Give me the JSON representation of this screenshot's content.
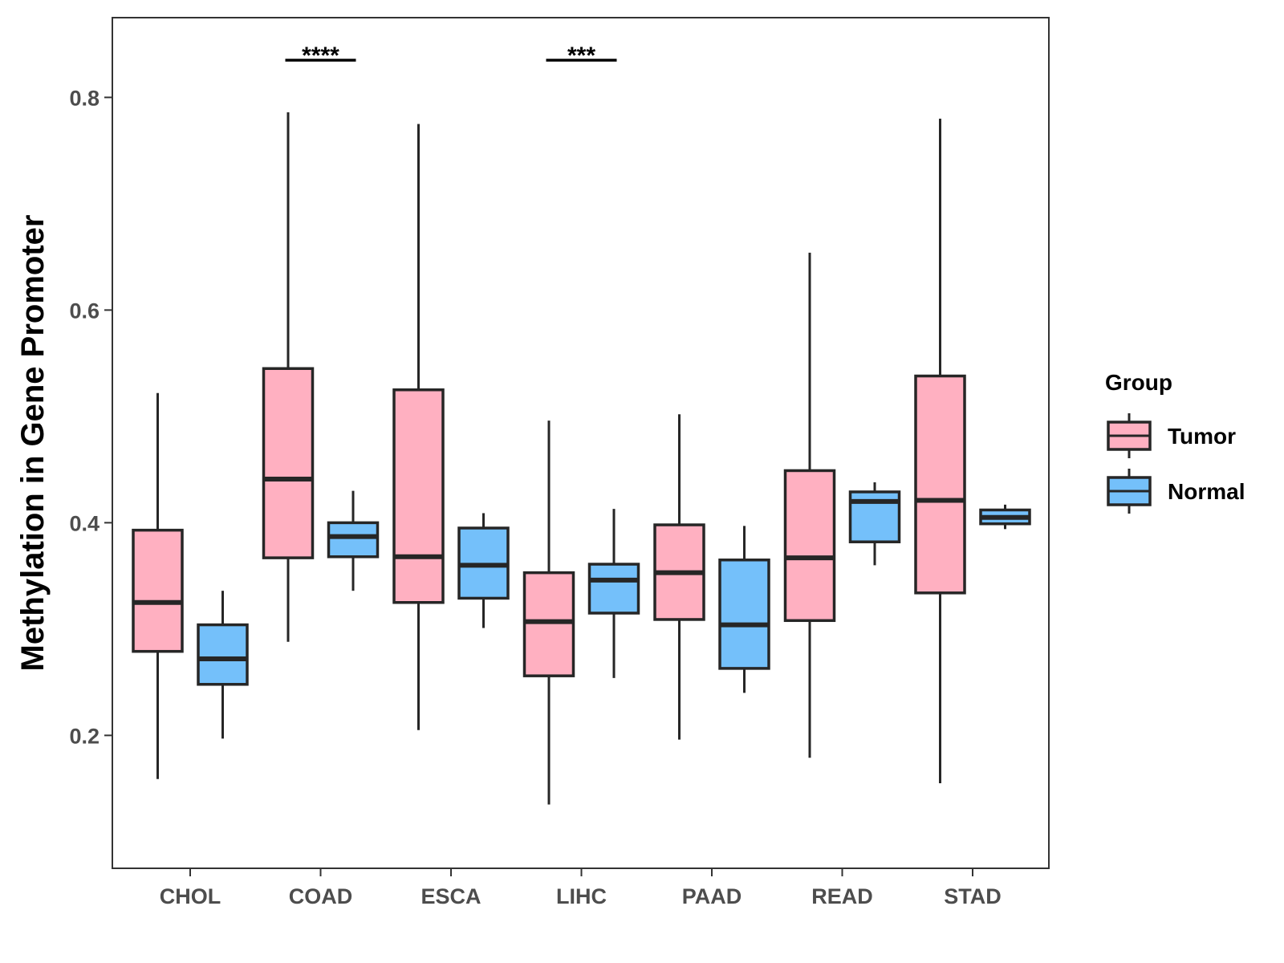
{
  "chart_data": {
    "type": "boxplot",
    "title": "",
    "xlabel": "",
    "ylabel": "Methylation in Gene Promoter",
    "ylim": [
      0.075,
      0.875
    ],
    "yticks": [
      0.2,
      0.4,
      0.6,
      0.8
    ],
    "ytick_labels": [
      "0.2",
      "0.4",
      "0.6",
      "0.8"
    ],
    "categories": [
      "CHOL",
      "COAD",
      "ESCA",
      "LIHC",
      "PAAD",
      "READ",
      "STAD"
    ],
    "legend": {
      "title": "Group",
      "position": "right",
      "entries": [
        {
          "name": "Tumor",
          "color": "#FFB0C1"
        },
        {
          "name": "Normal",
          "color": "#74C0FA"
        }
      ]
    },
    "series": [
      {
        "name": "Tumor",
        "color": "#FFB0C1",
        "boxes": [
          {
            "category": "CHOL",
            "min": 0.159,
            "q1": 0.279,
            "median": 0.325,
            "q3": 0.393,
            "max": 0.522
          },
          {
            "category": "COAD",
            "min": 0.288,
            "q1": 0.367,
            "median": 0.441,
            "q3": 0.545,
            "max": 0.786
          },
          {
            "category": "ESCA",
            "min": 0.205,
            "q1": 0.325,
            "median": 0.368,
            "q3": 0.525,
            "max": 0.775
          },
          {
            "category": "LIHC",
            "min": 0.135,
            "q1": 0.256,
            "median": 0.307,
            "q3": 0.353,
            "max": 0.496
          },
          {
            "category": "PAAD",
            "min": 0.196,
            "q1": 0.309,
            "median": 0.353,
            "q3": 0.398,
            "max": 0.502
          },
          {
            "category": "READ",
            "min": 0.179,
            "q1": 0.308,
            "median": 0.367,
            "q3": 0.449,
            "max": 0.654
          },
          {
            "category": "STAD",
            "min": 0.155,
            "q1": 0.334,
            "median": 0.421,
            "q3": 0.538,
            "max": 0.78
          }
        ]
      },
      {
        "name": "Normal",
        "color": "#74C0FA",
        "boxes": [
          {
            "category": "CHOL",
            "min": 0.197,
            "q1": 0.248,
            "median": 0.272,
            "q3": 0.304,
            "max": 0.336
          },
          {
            "category": "COAD",
            "min": 0.336,
            "q1": 0.368,
            "median": 0.387,
            "q3": 0.4,
            "max": 0.43
          },
          {
            "category": "ESCA",
            "min": 0.301,
            "q1": 0.329,
            "median": 0.36,
            "q3": 0.395,
            "max": 0.409
          },
          {
            "category": "LIHC",
            "min": 0.254,
            "q1": 0.315,
            "median": 0.346,
            "q3": 0.361,
            "max": 0.413
          },
          {
            "category": "PAAD",
            "min": 0.24,
            "q1": 0.263,
            "median": 0.304,
            "q3": 0.365,
            "max": 0.397
          },
          {
            "category": "READ",
            "min": 0.36,
            "q1": 0.382,
            "median": 0.42,
            "q3": 0.429,
            "max": 0.438
          },
          {
            "category": "STAD",
            "min": 0.394,
            "q1": 0.399,
            "median": 0.405,
            "q3": 0.412,
            "max": 0.417
          }
        ]
      }
    ],
    "annotations": [
      {
        "category": "COAD",
        "label": "****"
      },
      {
        "category": "LIHC",
        "label": "***"
      }
    ]
  }
}
